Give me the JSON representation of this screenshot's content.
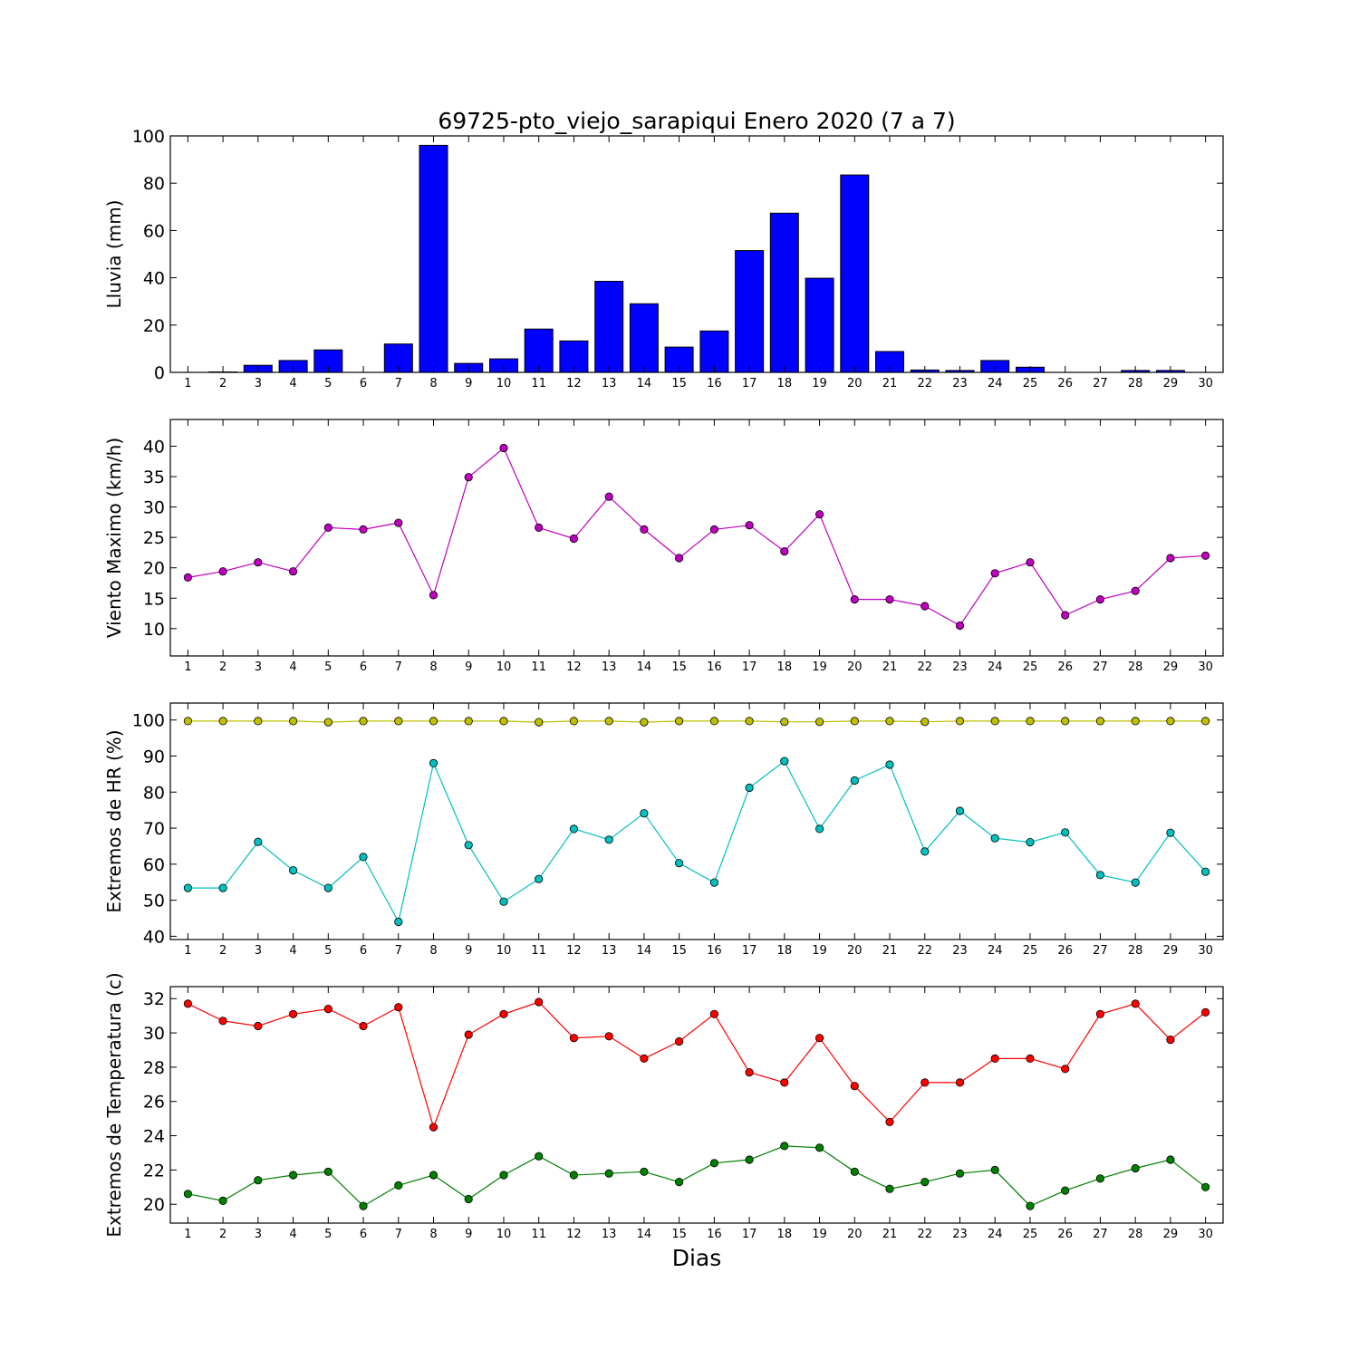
{
  "chart_data": {
    "title": "69725-pto_viejo_sarapiqui Enero 2020  (7 a 7)",
    "xlabel": "Dias",
    "days": [
      1,
      2,
      3,
      4,
      5,
      6,
      7,
      8,
      9,
      10,
      11,
      12,
      13,
      14,
      15,
      16,
      17,
      18,
      19,
      20,
      21,
      22,
      23,
      24,
      25,
      26,
      27,
      28,
      29,
      30
    ],
    "xlim": [
      0.5,
      30.5
    ],
    "panels": [
      {
        "type": "bar",
        "ylabel": "Lluvia (mm)",
        "ylim": [
          0,
          100
        ],
        "yticks": [
          0,
          20,
          40,
          60,
          80,
          100
        ],
        "series": [
          {
            "color": "#0000ff",
            "values": [
              0,
              0.2,
              3,
              5,
              9.5,
              0,
              12,
              96,
              3.8,
              5.7,
              18.3,
              13.3,
              38.5,
              29,
              10.7,
              17.5,
              51.5,
              67.3,
              39.8,
              83.5,
              8.8,
              1,
              0.8,
              5,
              2.2,
              0,
              0,
              0.8,
              0.8,
              0
            ]
          }
        ]
      },
      {
        "type": "line",
        "ylabel": "Viento Maximo (km/h)",
        "ylim": [
          5.5,
          44.4
        ],
        "yticks": [
          10,
          15,
          20,
          25,
          30,
          35,
          40
        ],
        "series": [
          {
            "color": "#bf00bf",
            "values": [
              18.4,
              19.4,
              20.9,
              19.4,
              26.6,
              26.3,
              27.4,
              15.5,
              34.9,
              39.7,
              26.6,
              24.8,
              31.7,
              26.3,
              21.6,
              26.3,
              27,
              22.7,
              28.8,
              14.8,
              14.8,
              13.7,
              10.5,
              19.1,
              20.9,
              12.2,
              14.8,
              16.2,
              21.6,
              22
            ]
          }
        ]
      },
      {
        "type": "line",
        "ylabel": "Extremos de HR (%)",
        "ylim": [
          39.1,
          104.7
        ],
        "yticks": [
          40,
          50,
          60,
          70,
          80,
          90,
          100
        ],
        "series": [
          {
            "color": "#bfbf00",
            "values": [
              99.7,
              99.7,
              99.7,
              99.7,
              99.4,
              99.7,
              99.7,
              99.7,
              99.7,
              99.7,
              99.4,
              99.7,
              99.7,
              99.4,
              99.7,
              99.7,
              99.7,
              99.5,
              99.5,
              99.7,
              99.7,
              99.5,
              99.7,
              99.7,
              99.7,
              99.7,
              99.7,
              99.7,
              99.7,
              99.7
            ]
          },
          {
            "color": "#00bfbf",
            "values": [
              53.4,
              53.4,
              66.2,
              58.3,
              53.4,
              62,
              44,
              88,
              65.3,
              49.6,
              55.9,
              69.8,
              66.8,
              74.1,
              60.3,
              54.9,
              81.2,
              88.6,
              69.8,
              83.2,
              87.6,
              63.5,
              74.8,
              67.2,
              66.1,
              68.8,
              57,
              54.9,
              68.7,
              57.9
            ]
          }
        ]
      },
      {
        "type": "line",
        "ylabel": "Extremos de Temperatura (c)",
        "ylim": [
          18.9,
          32.7
        ],
        "yticks": [
          20,
          22,
          24,
          26,
          28,
          30,
          32
        ],
        "series": [
          {
            "color": "#ff0000",
            "values": [
              31.7,
              30.7,
              30.4,
              31.1,
              31.4,
              30.4,
              31.5,
              24.5,
              29.9,
              31.1,
              31.8,
              29.7,
              29.8,
              28.5,
              29.5,
              31.1,
              27.7,
              27.1,
              29.7,
              26.9,
              24.8,
              27.1,
              27.1,
              28.5,
              28.5,
              27.9,
              31.1,
              31.7,
              29.6,
              31.2
            ]
          },
          {
            "color": "#008000",
            "values": [
              20.6,
              20.2,
              21.4,
              21.7,
              21.9,
              19.9,
              21.1,
              21.7,
              20.3,
              21.7,
              22.8,
              21.7,
              21.8,
              21.9,
              21.3,
              22.4,
              22.6,
              23.4,
              23.3,
              21.9,
              20.9,
              21.3,
              21.8,
              22,
              19.9,
              20.8,
              21.5,
              22.1,
              22.6,
              21
            ]
          }
        ]
      }
    ]
  }
}
